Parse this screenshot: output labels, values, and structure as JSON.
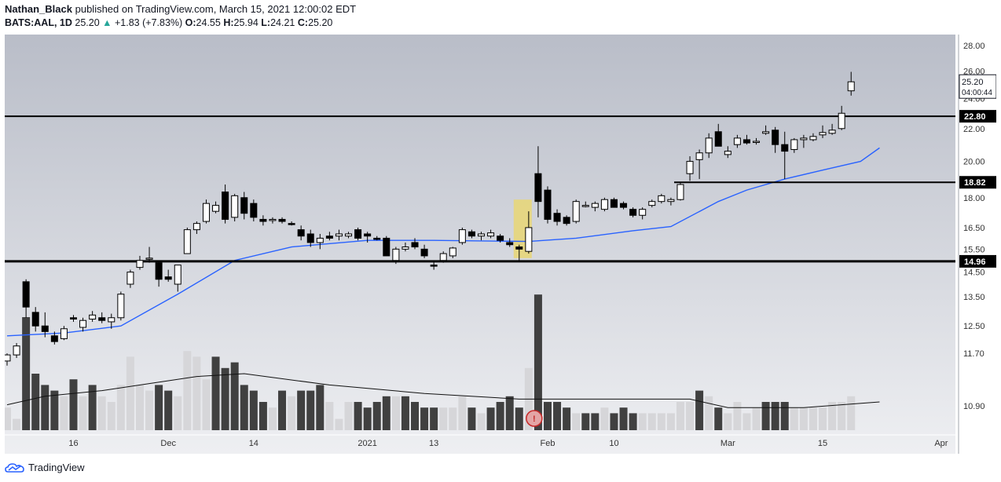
{
  "header": {
    "author": "Nathan_Black",
    "published": "published on TradingView.com, March 15, 2021 12:00:02 EDT",
    "symbol": "BATS:AAL, 1D",
    "last": "25.20",
    "change": "+1.83 (+7.83%)",
    "o_label": "O:",
    "o": "24.55",
    "h_label": "H:",
    "h": "25.94",
    "l_label": "L:",
    "l": "24.21",
    "c_label": "C:",
    "c": "25.20"
  },
  "brand": "TradingView",
  "colors": {
    "bg_top": "#b9bdc8",
    "bg_bottom": "#ecedf0",
    "ma": "#2962ff",
    "highlight": "#e7d67a",
    "volume_up": "#d6d6d9",
    "volume_down": "#404040"
  },
  "chart_data": {
    "type": "candlestick",
    "y_ticks": [
      "28.00",
      "26.00",
      "24.00",
      "22.00",
      "20.00",
      "18.00",
      "16.50",
      "15.50",
      "14.50",
      "13.50",
      "12.50",
      "11.70",
      "10.90"
    ],
    "x_ticks": [
      "16",
      "Dec",
      "14",
      "2021",
      "13",
      "Feb",
      "10",
      "Mar",
      "15",
      "Apr"
    ],
    "price_labels": [
      {
        "value": "25.20",
        "sub": "04:00:44",
        "style": "last"
      },
      {
        "value": "22.80",
        "style": "level"
      },
      {
        "value": "18.82",
        "style": "level"
      },
      {
        "value": "14.96",
        "style": "level"
      }
    ],
    "levels": [
      22.8,
      18.82,
      14.96
    ],
    "log_scale": true,
    "candles": [
      [
        11.2,
        11.45,
        11.05,
        11.4
      ],
      [
        11.4,
        11.8,
        11.3,
        11.7
      ],
      [
        14.1,
        14.2,
        12.7,
        13.1
      ],
      [
        12.9,
        13.1,
        12.2,
        12.4
      ],
      [
        12.4,
        12.9,
        12.0,
        12.2
      ],
      [
        12.05,
        12.2,
        11.75,
        11.85
      ],
      [
        11.95,
        12.4,
        11.9,
        12.3
      ],
      [
        12.7,
        12.8,
        12.55,
        12.65
      ],
      [
        12.35,
        12.7,
        12.2,
        12.6
      ],
      [
        12.65,
        12.95,
        12.55,
        12.8
      ],
      [
        12.7,
        12.9,
        12.5,
        12.6
      ],
      [
        12.55,
        12.85,
        12.3,
        12.7
      ],
      [
        12.7,
        13.7,
        12.6,
        13.6
      ],
      [
        14.0,
        14.6,
        13.85,
        14.5
      ],
      [
        14.7,
        15.2,
        14.6,
        15.0
      ],
      [
        15.1,
        15.6,
        14.9,
        15.1
      ],
      [
        14.9,
        15.0,
        13.9,
        14.2
      ],
      [
        14.3,
        14.6,
        14.1,
        14.2
      ],
      [
        14.0,
        14.8,
        13.7,
        14.8
      ],
      [
        15.3,
        16.5,
        15.3,
        16.4
      ],
      [
        16.4,
        16.8,
        16.2,
        16.7
      ],
      [
        16.8,
        17.9,
        16.7,
        17.7
      ],
      [
        17.3,
        17.8,
        17.2,
        17.6
      ],
      [
        18.3,
        18.7,
        16.7,
        16.9
      ],
      [
        17.0,
        18.2,
        16.8,
        18.1
      ],
      [
        18.0,
        18.3,
        16.9,
        17.2
      ],
      [
        17.7,
        17.9,
        16.8,
        17.0
      ],
      [
        16.9,
        17.1,
        16.6,
        16.8
      ],
      [
        16.9,
        17.0,
        16.7,
        16.9
      ],
      [
        16.9,
        17.0,
        16.7,
        16.8
      ],
      [
        16.7,
        16.8,
        16.6,
        16.65
      ],
      [
        16.4,
        16.6,
        15.9,
        16.1
      ],
      [
        16.2,
        16.4,
        15.6,
        15.8
      ],
      [
        15.8,
        16.2,
        15.5,
        16.0
      ],
      [
        16.1,
        16.3,
        15.9,
        16.0
      ],
      [
        16.1,
        16.4,
        15.9,
        16.2
      ],
      [
        16.1,
        16.3,
        16.0,
        16.2
      ],
      [
        16.4,
        16.5,
        15.9,
        16.0
      ],
      [
        16.2,
        16.3,
        15.8,
        16.1
      ],
      [
        16.0,
        16.1,
        15.9,
        15.98
      ],
      [
        16.0,
        16.1,
        15.3,
        15.2
      ],
      [
        15.0,
        15.6,
        14.85,
        15.5
      ],
      [
        15.5,
        15.8,
        15.4,
        15.6
      ],
      [
        15.8,
        16.0,
        15.5,
        15.6
      ],
      [
        15.5,
        15.7,
        15.1,
        15.2
      ],
      [
        14.8,
        15.0,
        14.6,
        14.75
      ],
      [
        15.0,
        15.4,
        14.9,
        15.3
      ],
      [
        15.2,
        15.6,
        15.1,
        15.55
      ],
      [
        15.8,
        16.5,
        15.7,
        16.4
      ],
      [
        16.3,
        16.4,
        16.0,
        16.1
      ],
      [
        16.1,
        16.3,
        15.9,
        16.2
      ],
      [
        16.1,
        16.4,
        16.0,
        16.25
      ],
      [
        16.1,
        16.2,
        15.8,
        15.9
      ],
      [
        15.8,
        16.0,
        15.6,
        15.7
      ],
      [
        15.6,
        15.7,
        15.0,
        15.5
      ],
      [
        15.4,
        17.3,
        15.3,
        16.5
      ],
      [
        19.3,
        20.9,
        17.0,
        17.8
      ],
      [
        18.4,
        18.6,
        16.7,
        16.9
      ],
      [
        17.2,
        17.4,
        16.6,
        16.8
      ],
      [
        17.0,
        17.1,
        16.6,
        16.7
      ],
      [
        16.8,
        17.9,
        16.7,
        17.8
      ],
      [
        17.6,
        17.8,
        17.5,
        17.6
      ],
      [
        17.5,
        17.8,
        17.3,
        17.7
      ],
      [
        17.4,
        18.0,
        17.3,
        17.9
      ],
      [
        17.9,
        18.0,
        17.5,
        17.5
      ],
      [
        17.7,
        17.8,
        17.4,
        17.5
      ],
      [
        17.4,
        17.5,
        17.0,
        17.1
      ],
      [
        17.1,
        17.5,
        16.9,
        17.4
      ],
      [
        17.6,
        17.9,
        17.5,
        17.8
      ],
      [
        17.8,
        18.2,
        17.7,
        18.1
      ],
      [
        17.8,
        18.0,
        17.6,
        17.9
      ],
      [
        17.9,
        18.85,
        17.85,
        18.7
      ],
      [
        19.3,
        20.3,
        18.9,
        20.0
      ],
      [
        20.1,
        20.7,
        19.0,
        20.5
      ],
      [
        20.5,
        21.7,
        20.2,
        21.4
      ],
      [
        21.8,
        22.3,
        20.9,
        20.9
      ],
      [
        20.4,
        20.9,
        20.2,
        20.6
      ],
      [
        21.0,
        21.6,
        20.8,
        21.4
      ],
      [
        21.3,
        21.6,
        21.0,
        21.1
      ],
      [
        21.2,
        21.4,
        21.0,
        21.2
      ],
      [
        21.7,
        22.2,
        21.6,
        21.8
      ],
      [
        21.9,
        22.1,
        20.5,
        21.0
      ],
      [
        21.0,
        21.8,
        19.0,
        20.6
      ],
      [
        20.7,
        21.4,
        20.5,
        21.3
      ],
      [
        21.3,
        21.6,
        20.8,
        21.4
      ],
      [
        21.3,
        21.7,
        21.2,
        21.5
      ],
      [
        21.6,
        22.2,
        21.4,
        21.75
      ],
      [
        21.7,
        22.3,
        21.6,
        21.9
      ],
      [
        22.0,
        23.5,
        21.9,
        23.0
      ],
      [
        24.55,
        25.94,
        24.21,
        25.2
      ]
    ],
    "volume": [
      {
        "v": 4,
        "up": true
      },
      {
        "v": 2,
        "up": true
      },
      {
        "v": 20,
        "up": false
      },
      {
        "v": 10,
        "up": false
      },
      {
        "v": 8,
        "up": false
      },
      {
        "v": 7,
        "up": false
      },
      {
        "v": 6,
        "up": true
      },
      {
        "v": 9,
        "up": false
      },
      {
        "v": 6,
        "up": true
      },
      {
        "v": 8,
        "up": false
      },
      {
        "v": 6,
        "up": true
      },
      {
        "v": 5,
        "up": true
      },
      {
        "v": 8,
        "up": true
      },
      {
        "v": 13,
        "up": true
      },
      {
        "v": 8,
        "up": true
      },
      {
        "v": 7,
        "up": true
      },
      {
        "v": 8,
        "up": false
      },
      {
        "v": 7,
        "up": false
      },
      {
        "v": 6,
        "up": true
      },
      {
        "v": 14,
        "up": true
      },
      {
        "v": 13,
        "up": true
      },
      {
        "v": 9,
        "up": true
      },
      {
        "v": 13,
        "up": false
      },
      {
        "v": 11,
        "up": false
      },
      {
        "v": 12,
        "up": false
      },
      {
        "v": 8,
        "up": false
      },
      {
        "v": 7,
        "up": false
      },
      {
        "v": 5,
        "up": false
      },
      {
        "v": 4,
        "up": true
      },
      {
        "v": 7,
        "up": false
      },
      {
        "v": 6,
        "up": true
      },
      {
        "v": 7,
        "up": false
      },
      {
        "v": 7,
        "up": false
      },
      {
        "v": 8,
        "up": false
      },
      {
        "v": 5,
        "up": true
      },
      {
        "v": 2,
        "up": true
      },
      {
        "v": 5,
        "up": true
      },
      {
        "v": 5,
        "up": false
      },
      {
        "v": 4,
        "up": false
      },
      {
        "v": 5,
        "up": false
      },
      {
        "v": 6,
        "up": false
      },
      {
        "v": 6,
        "up": true
      },
      {
        "v": 6,
        "up": false
      },
      {
        "v": 5,
        "up": false
      },
      {
        "v": 4,
        "up": false
      },
      {
        "v": 4,
        "up": false
      },
      {
        "v": 4,
        "up": true
      },
      {
        "v": 4,
        "up": true
      },
      {
        "v": 6,
        "up": true
      },
      {
        "v": 4,
        "up": false
      },
      {
        "v": 3,
        "up": true
      },
      {
        "v": 4,
        "up": false
      },
      {
        "v": 5,
        "up": false
      },
      {
        "v": 6,
        "up": false
      },
      {
        "v": 4,
        "up": false
      },
      {
        "v": 11,
        "up": true
      },
      {
        "v": 24,
        "up": false
      },
      {
        "v": 5,
        "up": false
      },
      {
        "v": 5,
        "up": false
      },
      {
        "v": 4,
        "up": false
      },
      {
        "v": 3,
        "up": true
      },
      {
        "v": 3,
        "up": false
      },
      {
        "v": 3,
        "up": false
      },
      {
        "v": 4,
        "up": true
      },
      {
        "v": 3,
        "up": false
      },
      {
        "v": 4,
        "up": false
      },
      {
        "v": 3,
        "up": false
      },
      {
        "v": 3,
        "up": true
      },
      {
        "v": 3,
        "up": true
      },
      {
        "v": 3,
        "up": true
      },
      {
        "v": 3,
        "up": true
      },
      {
        "v": 5,
        "up": true
      },
      {
        "v": 5,
        "up": true
      },
      {
        "v": 7,
        "up": false
      },
      {
        "v": 6,
        "up": true
      },
      {
        "v": 4,
        "up": false
      },
      {
        "v": 3,
        "up": true
      },
      {
        "v": 5,
        "up": true
      },
      {
        "v": 3,
        "up": true
      },
      {
        "v": 4,
        "up": true
      },
      {
        "v": 5,
        "up": false
      },
      {
        "v": 5,
        "up": false
      },
      {
        "v": 5,
        "up": false
      },
      {
        "v": 4,
        "up": true
      },
      {
        "v": 4,
        "up": true
      },
      {
        "v": 4,
        "up": true
      },
      {
        "v": 4,
        "up": true
      },
      {
        "v": 5,
        "up": true
      },
      {
        "v": 5,
        "up": true
      },
      {
        "v": 6,
        "up": true
      }
    ],
    "ma": [
      [
        0,
        12.05
      ],
      [
        6,
        12.15
      ],
      [
        12,
        12.4
      ],
      [
        18,
        13.6
      ],
      [
        24,
        15.0
      ],
      [
        30,
        15.6
      ],
      [
        38,
        15.9
      ],
      [
        45,
        15.9
      ],
      [
        55,
        15.85
      ],
      [
        60,
        16.0
      ],
      [
        66,
        16.35
      ],
      [
        70,
        16.55
      ],
      [
        75,
        17.8
      ],
      [
        78,
        18.4
      ],
      [
        82,
        19.0
      ],
      [
        86,
        19.5
      ],
      [
        90,
        20.0
      ],
      [
        92,
        20.8
      ]
    ],
    "volume_ma": [
      [
        0,
        4.5
      ],
      [
        4,
        6
      ],
      [
        10,
        7
      ],
      [
        20,
        9.5
      ],
      [
        25,
        10
      ],
      [
        34,
        8
      ],
      [
        44,
        6.5
      ],
      [
        54,
        5.5
      ],
      [
        60,
        5.5
      ],
      [
        72,
        5.5
      ],
      [
        76,
        4
      ],
      [
        84,
        4
      ],
      [
        92,
        5
      ]
    ]
  }
}
